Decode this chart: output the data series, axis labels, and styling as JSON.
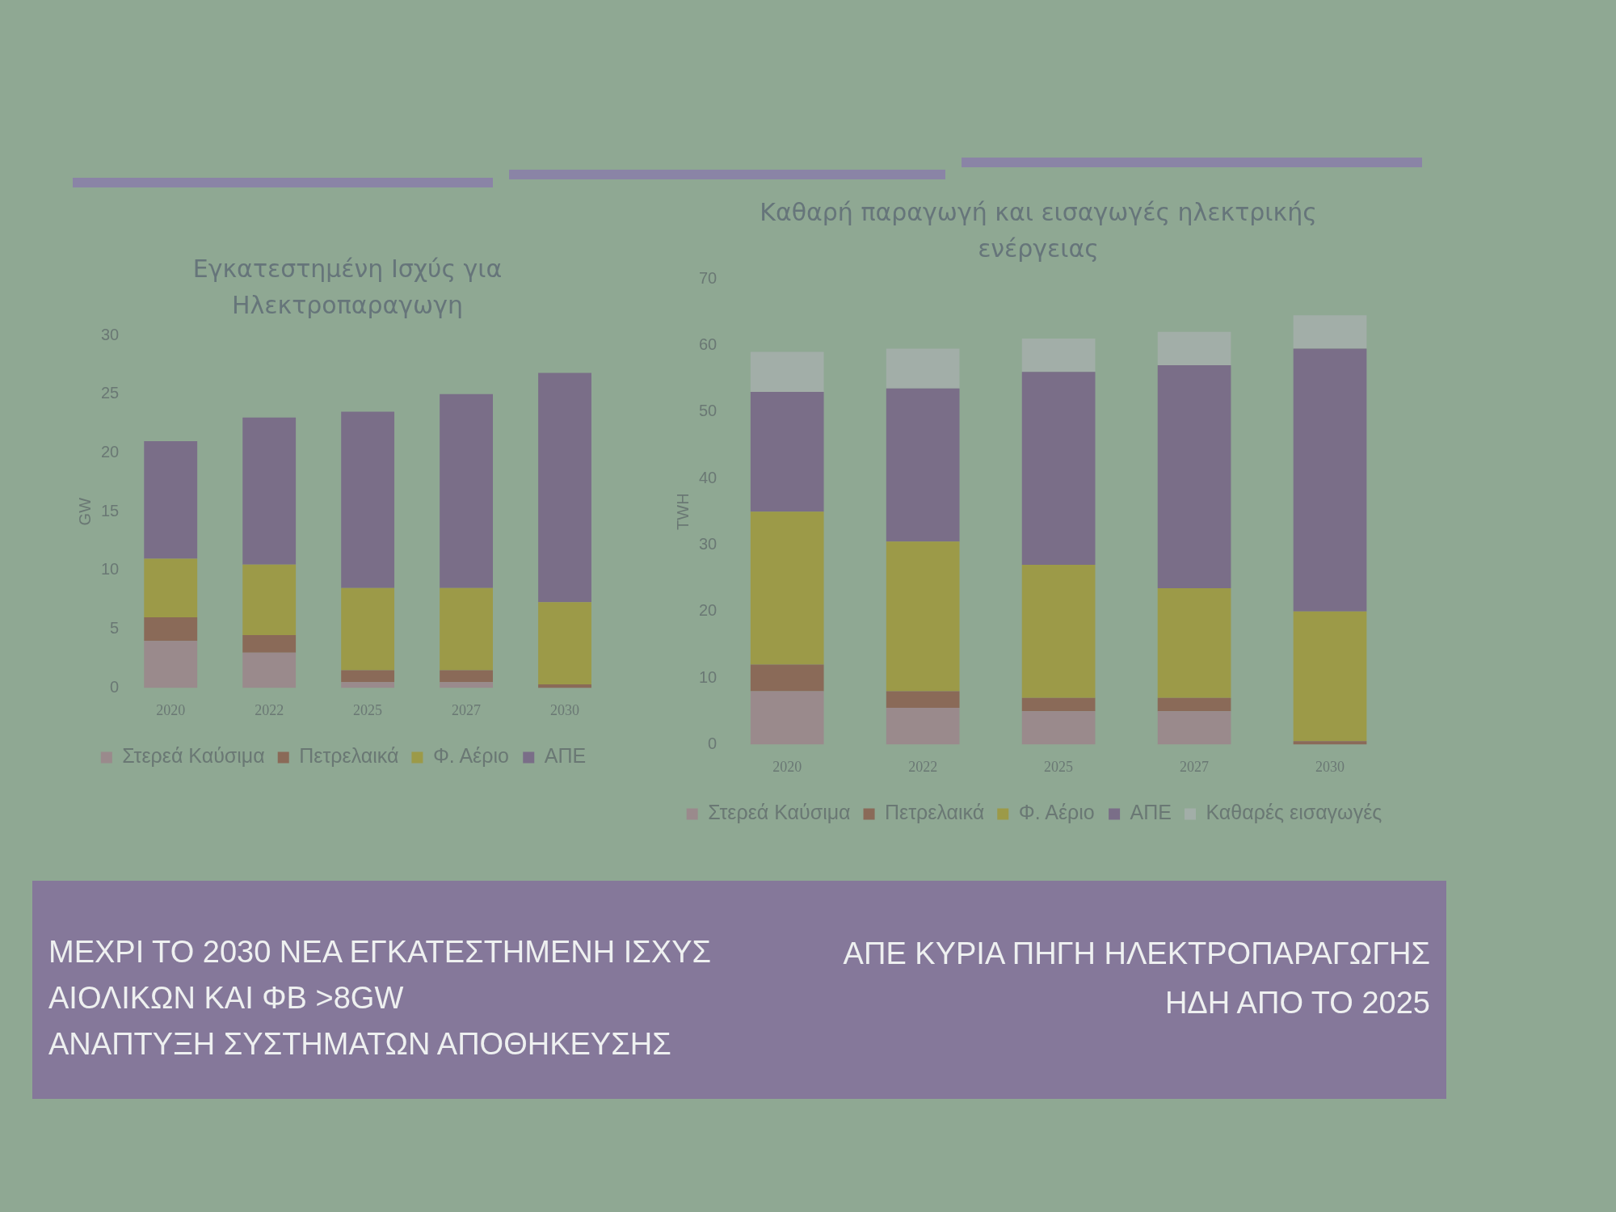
{
  "chart_data": [
    {
      "type": "bar",
      "title": "Εγκατεστημένη Ισχύς για Ηλεκτροπαραγωγη",
      "ylabel": "GW",
      "categories": [
        "2020",
        "2022",
        "2025",
        "2027",
        "2030"
      ],
      "stacked": true,
      "ylim": [
        0,
        30
      ],
      "yticks": [
        0,
        5,
        10,
        15,
        20,
        25,
        30
      ],
      "legend": "bottom",
      "series": [
        {
          "name": "Στερεά Καύσιμα",
          "color": "#9a8a8c",
          "values": [
            4,
            3,
            0.5,
            0.5,
            0
          ]
        },
        {
          "name": "Πετρελαικά",
          "color": "#8a6a58",
          "values": [
            2,
            1.5,
            1,
            1,
            0.3
          ]
        },
        {
          "name": "Φ. Αέριο",
          "color": "#9c9a48",
          "values": [
            5,
            6,
            7,
            7,
            7
          ]
        },
        {
          "name": "ΑΠΕ",
          "color": "#7a6e88",
          "values": [
            10,
            12.5,
            15,
            16.5,
            19.5
          ]
        }
      ]
    },
    {
      "type": "bar",
      "title": "Καθαρή παραγωγή και εισαγωγές ηλεκτρικής ενέργειας",
      "ylabel": "TWH",
      "categories": [
        "2020",
        "2022",
        "2025",
        "2027",
        "2030"
      ],
      "stacked": true,
      "ylim": [
        0,
        70
      ],
      "yticks": [
        0,
        10,
        20,
        30,
        40,
        50,
        60,
        70
      ],
      "legend": "bottom",
      "series": [
        {
          "name": "Στερεά Καύσιμα",
          "color": "#9a8a8c",
          "values": [
            8,
            5.5,
            5,
            5,
            0
          ]
        },
        {
          "name": "Πετρελαικά",
          "color": "#8a6a58",
          "values": [
            4,
            2.5,
            2,
            2,
            0.5
          ]
        },
        {
          "name": "Φ. Αέριο",
          "color": "#9c9a48",
          "values": [
            23,
            22.5,
            20,
            16.5,
            19.5
          ]
        },
        {
          "name": "ΑΠΕ",
          "color": "#7a6e88",
          "values": [
            18,
            23,
            29,
            33.5,
            39.5
          ]
        },
        {
          "name": "Καθαρές εισαγωγές",
          "color": "#a2aea8",
          "values": [
            6,
            6,
            5,
            5,
            5
          ]
        }
      ]
    },
    {
      "type": "other",
      "annotations": [
        "ΜΕΧΡΙ ΤΟ 2030 ΝΕΑ ΕΓΚΑΤΕΣΤΗΜΕΝΗ ΙΣΧΥΣ ΑΙΟΛΙΚΩΝ ΚΑΙ ΦΒ >8GW",
        "ΑΝΑΠΤΥΞΗ ΣΥΣΤΗΜΑΤΩΝ ΑΠΟΘΗΚΕΥΣΗΣ",
        "ΑΠΕ ΚΥΡΙΑ ΠΗΓΗ ΗΛΕΚΤΡΟΠΑΡΑΓΩΓΗΣ ΗΔΗ ΑΠΟ ΤΟ 2025"
      ]
    }
  ]
}
